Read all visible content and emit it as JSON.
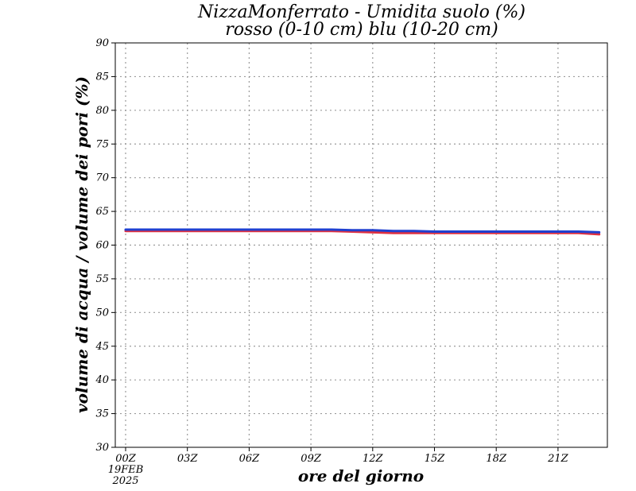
{
  "chart_data": {
    "type": "line",
    "title": "NizzaMonferrato - Umidita suolo (%)",
    "subtitle": "rosso (0-10 cm) blu (10-20 cm)",
    "xlabel": "ore del giorno",
    "ylabel": "volume di acqua / volume dei pori (%)",
    "xlim": [
      0,
      23.5
    ],
    "ylim": [
      30,
      90
    ],
    "x_ticks": [
      {
        "value": 0,
        "label": "00Z"
      },
      {
        "value": 3,
        "label": "03Z"
      },
      {
        "value": 6,
        "label": "06Z"
      },
      {
        "value": 9,
        "label": "09Z"
      },
      {
        "value": 12,
        "label": "12Z"
      },
      {
        "value": 15,
        "label": "15Z"
      },
      {
        "value": 18,
        "label": "18Z"
      },
      {
        "value": 21,
        "label": "21Z"
      }
    ],
    "date_label": [
      "19FEB",
      "2025"
    ],
    "y_ticks": [
      30,
      35,
      40,
      45,
      50,
      55,
      60,
      65,
      70,
      75,
      80,
      85,
      90
    ],
    "grid": true,
    "series": [
      {
        "color": "#e03040",
        "x": [
          0,
          1,
          2,
          3,
          4,
          5,
          6,
          7,
          8,
          9,
          10,
          11,
          12,
          13,
          14,
          15,
          16,
          17,
          18,
          19,
          20,
          21,
          22,
          23
        ],
        "y": [
          62.1,
          62.1,
          62.1,
          62.1,
          62.1,
          62.1,
          62.1,
          62.1,
          62.1,
          62.1,
          62.1,
          62.0,
          61.9,
          61.8,
          61.8,
          61.8,
          61.8,
          61.8,
          61.8,
          61.8,
          61.8,
          61.8,
          61.8,
          61.6
        ]
      },
      {
        "color": "#2040d0",
        "x": [
          0,
          1,
          2,
          3,
          4,
          5,
          6,
          7,
          8,
          9,
          10,
          11,
          12,
          13,
          14,
          15,
          16,
          17,
          18,
          19,
          20,
          21,
          22,
          23
        ],
        "y": [
          62.3,
          62.3,
          62.3,
          62.3,
          62.3,
          62.3,
          62.3,
          62.3,
          62.3,
          62.3,
          62.3,
          62.2,
          62.2,
          62.1,
          62.1,
          62.0,
          62.0,
          62.0,
          62.0,
          62.0,
          62.0,
          62.0,
          62.0,
          61.9
        ]
      }
    ]
  }
}
